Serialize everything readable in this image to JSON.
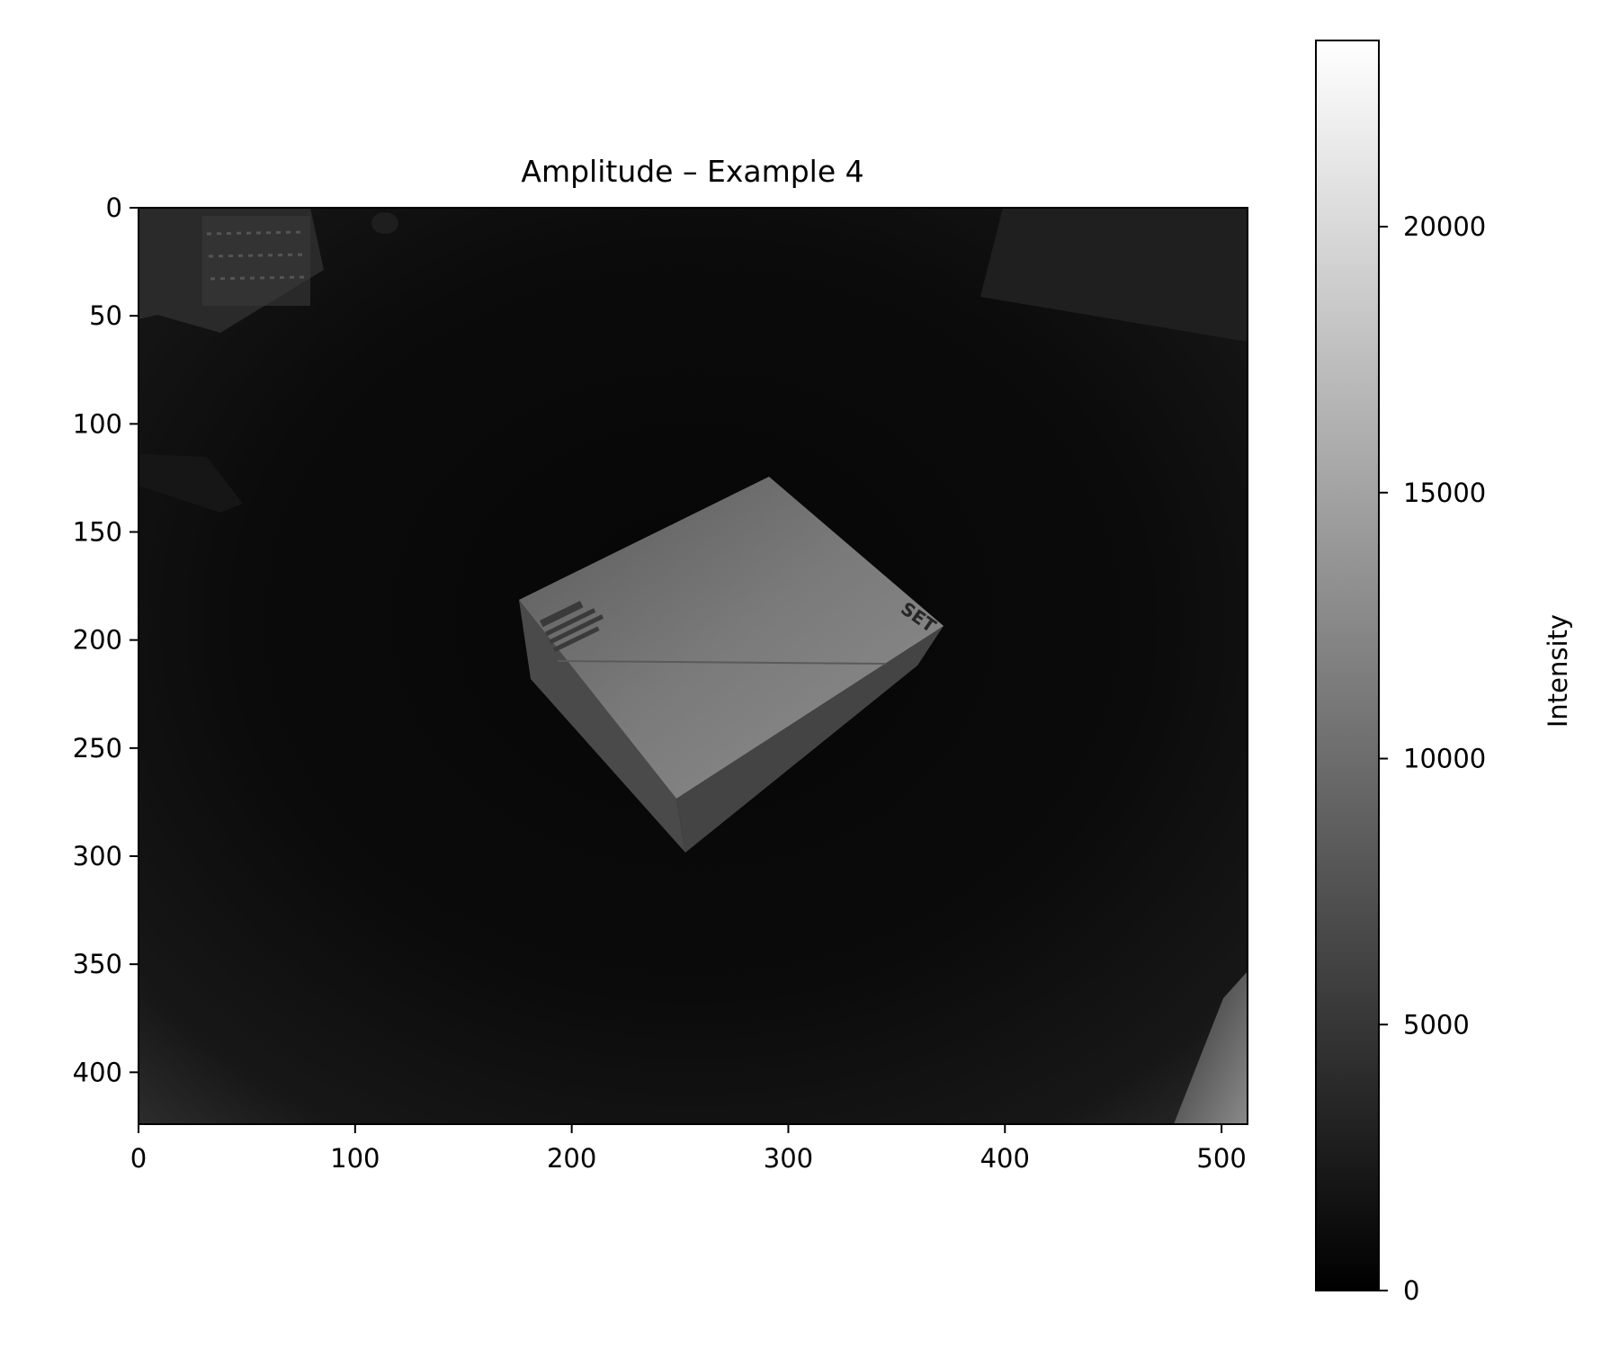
{
  "figure": {
    "title": "Amplitude – Example 4"
  },
  "chart_data": {
    "type": "heatmap",
    "title": "Amplitude – Example 4",
    "xlabel": "",
    "ylabel": "",
    "xlim": [
      0,
      512
    ],
    "ylim": [
      424,
      0
    ],
    "x_ticks": [
      0,
      100,
      200,
      300,
      400,
      500
    ],
    "y_ticks": [
      0,
      50,
      100,
      150,
      200,
      250,
      300,
      350,
      400
    ],
    "colormap": "gray",
    "colorbar": {
      "label": "Intensity",
      "range": [
        0,
        23500
      ],
      "ticks": [
        0,
        5000,
        10000,
        15000,
        20000
      ]
    },
    "image_description": "dark amplitude image of a cardboard box on a floor",
    "box_text": [
      "SET"
    ]
  },
  "colors": {
    "background": "#ffffff",
    "axes": "#000000"
  }
}
